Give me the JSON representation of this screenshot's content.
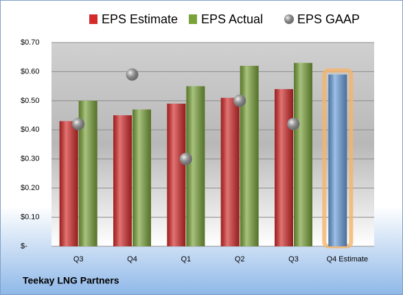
{
  "chart_data": {
    "type": "bar",
    "categories": [
      "Q3",
      "Q4",
      "Q1",
      "Q2",
      "Q3",
      "Q4 Estimate"
    ],
    "series": [
      {
        "name": "EPS Estimate",
        "color": "#d42a2a",
        "values": [
          0.43,
          0.45,
          0.49,
          0.51,
          0.54,
          0.59
        ],
        "point_colors": [
          "#d42a2a",
          "#d42a2a",
          "#d42a2a",
          "#d42a2a",
          "#d42a2a",
          "#6a9fdc"
        ]
      },
      {
        "name": "EPS Actual",
        "color": "#7aa33a",
        "values": [
          0.5,
          0.47,
          0.55,
          0.62,
          0.63,
          null
        ]
      },
      {
        "name": "EPS GAAP",
        "color": "#a8a8a8",
        "marker": "circle",
        "values": [
          0.42,
          0.59,
          0.3,
          0.5,
          0.42,
          null
        ]
      }
    ],
    "highlight_glow": "#f5b46a",
    "ylim": [
      0,
      0.7
    ],
    "yticks": [
      {
        "value": 0,
        "label": "$-"
      },
      {
        "value": 0.1,
        "label": "$0.10"
      },
      {
        "value": 0.2,
        "label": "$0.20"
      },
      {
        "value": 0.3,
        "label": "$0.30"
      },
      {
        "value": 0.4,
        "label": "$0.40"
      },
      {
        "value": 0.5,
        "label": "$0.50"
      },
      {
        "value": 0.6,
        "label": "$0.60"
      },
      {
        "value": 0.7,
        "label": "$0.70"
      }
    ],
    "grid": true,
    "footer": "Teekay LNG Partners"
  }
}
